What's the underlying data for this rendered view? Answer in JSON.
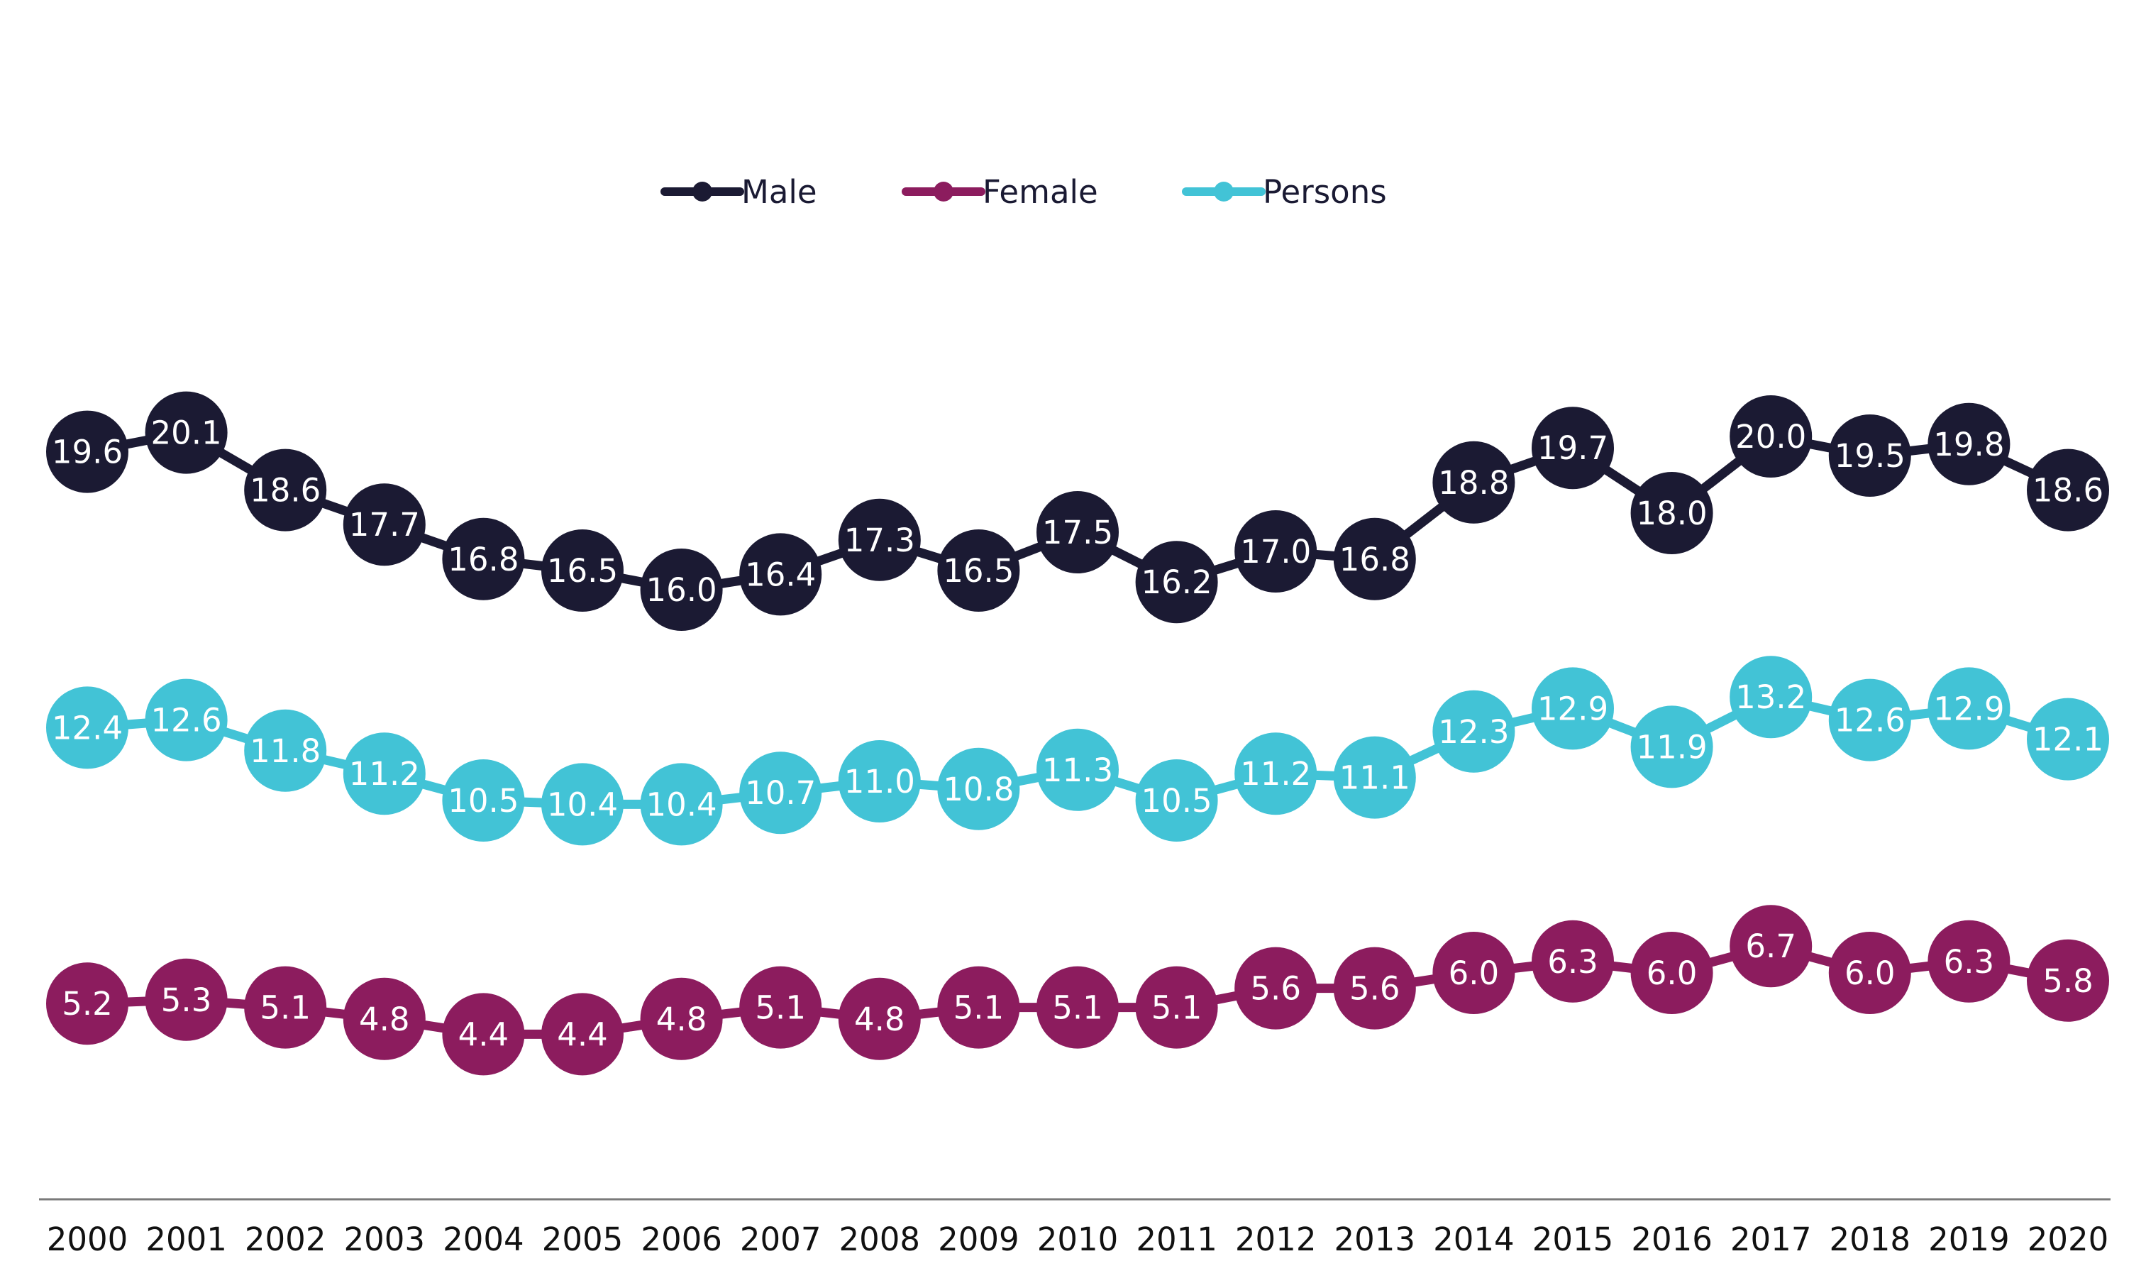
{
  "chart_data": {
    "type": "line",
    "title": "",
    "xlabel": "",
    "ylabel": "",
    "ylim": [
      0,
      25
    ],
    "grid": false,
    "legend_position": "top-center",
    "x": [
      "2000",
      "2001",
      "2002",
      "2003",
      "2004",
      "2005",
      "2006",
      "2007",
      "2008",
      "2009",
      "2010",
      "2011",
      "2012",
      "2013",
      "2014",
      "2015",
      "2016",
      "2017",
      "2018",
      "2019",
      "2020"
    ],
    "series": [
      {
        "name": "Male",
        "color": "#1b1a33",
        "values": [
          19.6,
          20.1,
          18.6,
          17.7,
          16.8,
          16.5,
          16.0,
          16.4,
          17.3,
          16.5,
          17.5,
          16.2,
          17.0,
          16.8,
          18.8,
          19.7,
          18.0,
          20.0,
          19.5,
          19.8,
          18.6
        ]
      },
      {
        "name": "Female",
        "color": "#8c1c5e",
        "values": [
          5.2,
          5.3,
          5.1,
          4.8,
          4.4,
          4.4,
          4.8,
          5.1,
          4.8,
          5.1,
          5.1,
          5.1,
          5.6,
          5.6,
          6.0,
          6.3,
          6.0,
          6.7,
          6.0,
          6.3,
          5.8
        ]
      },
      {
        "name": "Persons",
        "color": "#42c3d6",
        "values": [
          12.4,
          12.6,
          11.8,
          11.2,
          10.5,
          10.4,
          10.4,
          10.7,
          11.0,
          10.8,
          11.3,
          10.5,
          11.2,
          11.1,
          12.3,
          12.9,
          11.9,
          13.2,
          12.6,
          12.9,
          12.1
        ]
      }
    ]
  }
}
